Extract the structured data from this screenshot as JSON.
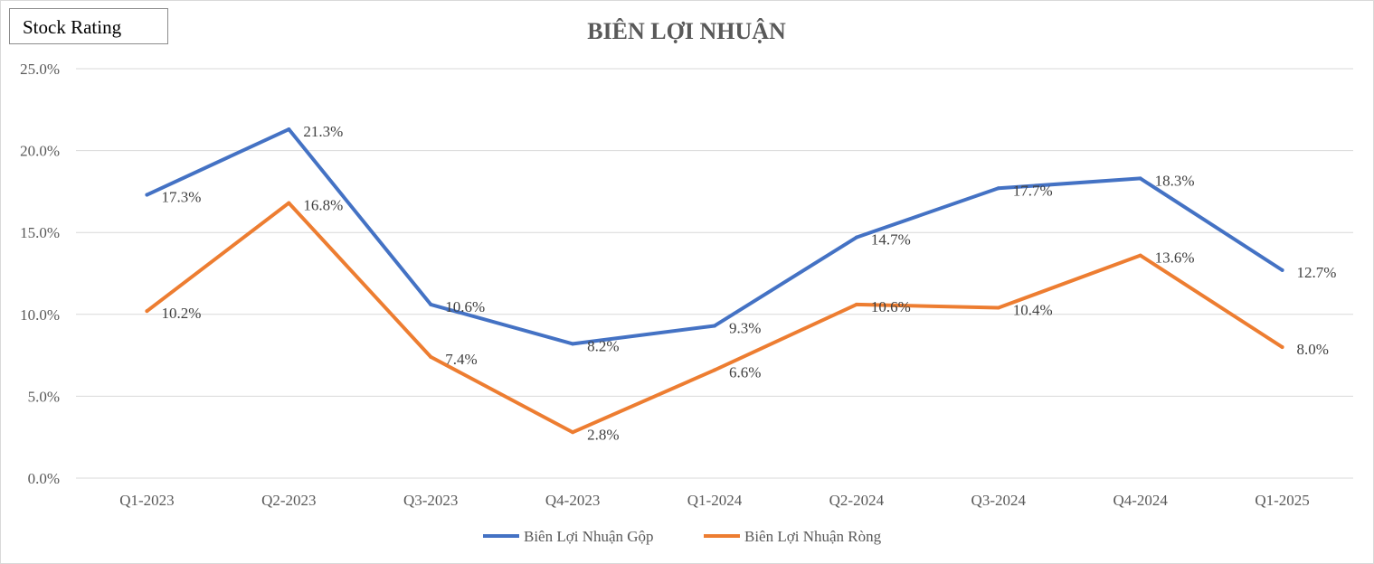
{
  "brand": {
    "label": "Stock Rating"
  },
  "chart_data": {
    "type": "line",
    "title": "BIÊN LỢI NHUẬN",
    "xlabel": "",
    "ylabel": "",
    "categories": [
      "Q1-2023",
      "Q2-2023",
      "Q3-2023",
      "Q4-2023",
      "Q1-2024",
      "Q2-2024",
      "Q3-2024",
      "Q4-2024",
      "Q1-2025"
    ],
    "ylim": [
      0,
      25
    ],
    "yticks": [
      0,
      5,
      10,
      15,
      20,
      25
    ],
    "ytick_labels": [
      "0.0%",
      "5.0%",
      "10.0%",
      "15.0%",
      "20.0%",
      "25.0%"
    ],
    "grid": true,
    "legend_position": "bottom",
    "series": [
      {
        "name": "Biên Lợi Nhuận Gộp",
        "color": "#4472c4",
        "values": [
          17.3,
          21.3,
          10.6,
          8.2,
          9.3,
          14.7,
          17.7,
          18.3,
          12.7
        ],
        "labels": [
          "17.3%",
          "21.3%",
          "10.6%",
          "8.2%",
          "9.3%",
          "14.7%",
          "17.7%",
          "18.3%",
          "12.7%"
        ]
      },
      {
        "name": "Biên Lợi Nhuận Ròng",
        "color": "#ed7d31",
        "values": [
          10.2,
          16.8,
          7.4,
          2.8,
          6.6,
          10.6,
          10.4,
          13.6,
          8.0
        ],
        "labels": [
          "10.2%",
          "16.8%",
          "7.4%",
          "2.8%",
          "6.6%",
          "10.6%",
          "10.4%",
          "13.6%",
          "8.0%"
        ]
      }
    ]
  }
}
